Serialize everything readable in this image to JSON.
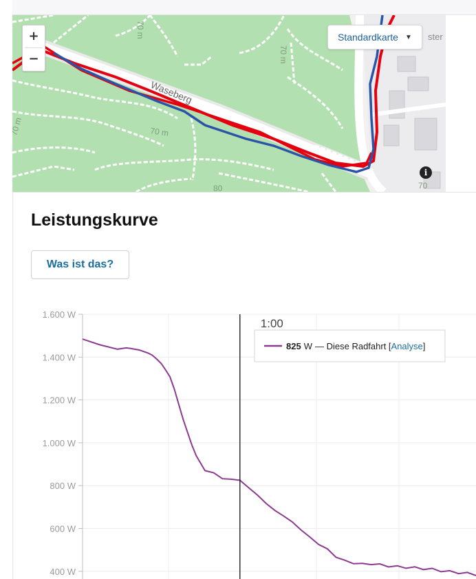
{
  "map": {
    "zoom_in_label": "+",
    "zoom_out_label": "−",
    "style_selector_label": "Standardkarte",
    "street_label": "Waseberg",
    "contour_labels": [
      "70 m",
      "70 m",
      "70 m",
      "70 m",
      "80",
      "70"
    ],
    "edge_label": "ster",
    "info_label": "i",
    "colors": {
      "route_red": "#e3000f",
      "route_blue": "#2a55a6",
      "park": "#b3e0b0",
      "path": "#ffffff"
    }
  },
  "section": {
    "title": "Leistungskurve",
    "help_button": "Was ist das?"
  },
  "chart_data": {
    "type": "line",
    "ytick_labels": [
      "1.600 W",
      "1.400 W",
      "1.200 W",
      "1.000 W",
      "800 W",
      "600 W",
      "400 W"
    ],
    "ytick_values": [
      1600,
      1400,
      1200,
      1000,
      800,
      600,
      400
    ],
    "ylim": [
      380,
      1600
    ],
    "xlim": [
      0,
      4.5
    ],
    "cursor": {
      "x": 1.8,
      "label": "1:00"
    },
    "tooltip": {
      "value": "825",
      "unit": "W",
      "text": "— Diese Radfahrt [",
      "link": "Analyse",
      "close": "]"
    },
    "series": [
      {
        "color": "#8b3a8f",
        "x": [
          0,
          0.2,
          0.4,
          0.5,
          0.55,
          0.65,
          0.75,
          0.8,
          0.85,
          0.9,
          0.95,
          1.0,
          1.05,
          1.1,
          1.15,
          1.2,
          1.25,
          1.3,
          1.35,
          1.4,
          1.45,
          1.5,
          1.6,
          1.7,
          1.8,
          1.9,
          2.0,
          2.1,
          2.2,
          2.3,
          2.4,
          2.5,
          2.6,
          2.7,
          2.8,
          2.9,
          3.0,
          3.1,
          3.2,
          3.3,
          3.4,
          3.5,
          3.6,
          3.7,
          3.8,
          3.9,
          4.0,
          4.1,
          4.2,
          4.3,
          4.4,
          4.5
        ],
        "values": [
          1484,
          1457,
          1437,
          1443,
          1440,
          1433,
          1419,
          1408,
          1390,
          1370,
          1340,
          1308,
          1250,
          1180,
          1110,
          1050,
          990,
          940,
          905,
          870,
          865,
          860,
          832,
          830,
          825,
          790,
          756,
          717,
          684,
          658,
          630,
          597,
          555,
          530,
          500,
          470,
          447,
          440,
          432,
          436,
          430,
          425,
          421,
          419,
          416,
          413,
          409,
          403,
          398,
          394,
          390,
          385
        ]
      }
    ]
  }
}
